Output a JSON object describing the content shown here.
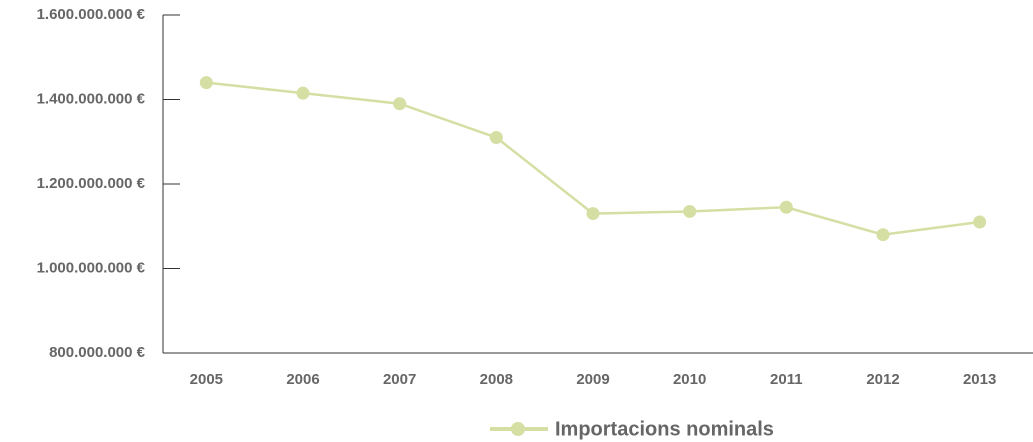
{
  "chart_data": {
    "type": "line",
    "categories": [
      "2005",
      "2006",
      "2007",
      "2008",
      "2009",
      "2010",
      "2011",
      "2012",
      "2013"
    ],
    "series": [
      {
        "name": "Importacions nominals",
        "color": "#d5dea3",
        "values": [
          1440000000,
          1415000000,
          1390000000,
          1310000000,
          1130000000,
          1135000000,
          1145000000,
          1080000000,
          1110000000
        ]
      }
    ],
    "ylim": [
      800000000,
      1600000000
    ],
    "yticks": [
      {
        "value": 800000000,
        "label": "800.000.000 €"
      },
      {
        "value": 1000000000,
        "label": "1.000.000.000 €"
      },
      {
        "value": 1200000000,
        "label": "1.200.000.000 €"
      },
      {
        "value": 1400000000,
        "label": "1.400.000.000 €"
      },
      {
        "value": 1600000000,
        "label": "1.600.000.000 €"
      }
    ],
    "grid": false,
    "legend": "bottom"
  }
}
